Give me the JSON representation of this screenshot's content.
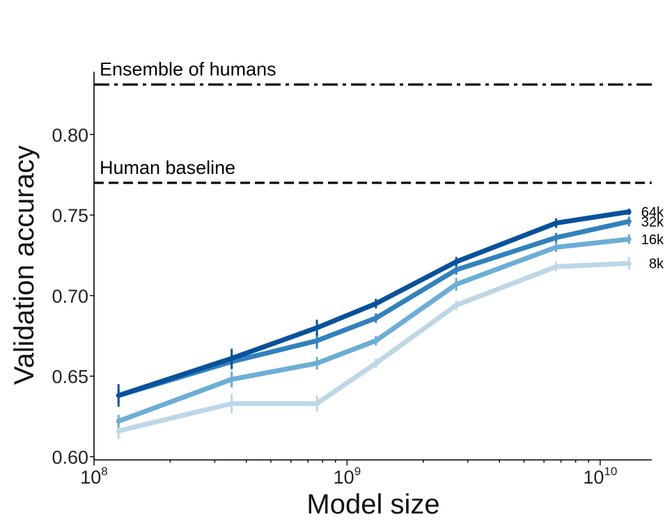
{
  "chart_data": {
    "type": "line",
    "xlabel": "Model size",
    "ylabel": "Validation accuracy",
    "xscale": "log",
    "xlim": [
      100000000.0,
      16000000000.0
    ],
    "ylim": [
      0.598,
      0.839
    ],
    "x": [
      125000000.0,
      350000000.0,
      760000000.0,
      1300000000.0,
      2700000000.0,
      6700000000.0,
      13000000000.0
    ],
    "yticks": [
      {
        "value": 0.6,
        "label": "0.60"
      },
      {
        "value": 0.65,
        "label": "0.65"
      },
      {
        "value": 0.7,
        "label": "0.70"
      },
      {
        "value": 0.75,
        "label": "0.75"
      },
      {
        "value": 0.8,
        "label": "0.80"
      }
    ],
    "xticks": [
      {
        "value": 100000000.0,
        "base": "10",
        "exp": "8"
      },
      {
        "value": 1000000000.0,
        "base": "10",
        "exp": "9"
      },
      {
        "value": 10000000000.0,
        "base": "10",
        "exp": "10"
      }
    ],
    "reference_lines": [
      {
        "name": "Ensemble of humans",
        "value": 0.831,
        "style": "dashdot"
      },
      {
        "name": "Human baseline",
        "value": 0.77,
        "style": "dashed"
      }
    ],
    "series": [
      {
        "name": "8k",
        "color": "#bdd7e7",
        "values": [
          0.616,
          0.633,
          0.633,
          0.658,
          0.694,
          0.718,
          0.72
        ],
        "errors": [
          0.005,
          0.006,
          0.005,
          0.003,
          0.003,
          0.003,
          0.004
        ]
      },
      {
        "name": "16k",
        "color": "#6baed6",
        "values": [
          0.622,
          0.648,
          0.658,
          0.672,
          0.707,
          0.73,
          0.735
        ],
        "errors": [
          0.004,
          0.005,
          0.004,
          0.003,
          0.004,
          0.003,
          0.003
        ]
      },
      {
        "name": "32k",
        "color": "#3182bd",
        "values": [
          0.638,
          0.659,
          0.672,
          0.686,
          0.716,
          0.736,
          0.746
        ],
        "errors": [
          0.004,
          0.005,
          0.005,
          0.003,
          0.003,
          0.003,
          0.003
        ]
      },
      {
        "name": "64k",
        "color": "#08519c",
        "values": [
          0.638,
          0.661,
          0.68,
          0.695,
          0.721,
          0.745,
          0.752
        ],
        "errors": [
          0.007,
          0.006,
          0.005,
          0.003,
          0.003,
          0.003,
          0.002
        ]
      }
    ]
  }
}
